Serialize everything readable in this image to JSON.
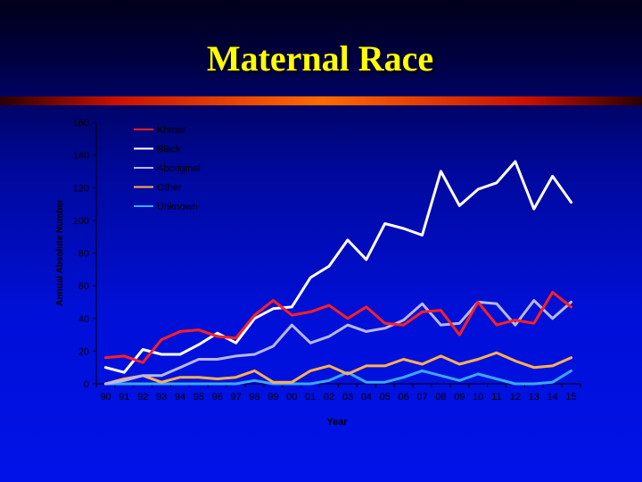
{
  "slide": {
    "title": "Maternal Race"
  },
  "chart_data": {
    "type": "line",
    "title": "",
    "xlabel": "Year",
    "ylabel": "Annual Absolute Number",
    "ylim": [
      0,
      160
    ],
    "yticks": [
      0,
      20,
      40,
      60,
      80,
      100,
      120,
      140,
      160
    ],
    "grid": false,
    "legend_position": "top-left",
    "categories": [
      "90",
      "91",
      "92",
      "93",
      "94",
      "95",
      "96",
      "97",
      "98",
      "99",
      "00",
      "01",
      "02",
      "03",
      "04",
      "05",
      "06",
      "07",
      "08",
      "09",
      "10",
      "11",
      "12",
      "13",
      "14",
      "15"
    ],
    "series": [
      {
        "name": "Khmer",
        "color": "#ff2020",
        "values": [
          16,
          17,
          13,
          27,
          32,
          33,
          29,
          28,
          42,
          51,
          42,
          44,
          48,
          40,
          47,
          37,
          36,
          44,
          45,
          30,
          50,
          36,
          39,
          37,
          56,
          47
        ]
      },
      {
        "name": "Black",
        "color": "#ffffff",
        "values": [
          10,
          7,
          21,
          18,
          18,
          24,
          31,
          25,
          40,
          46,
          47,
          65,
          72,
          88,
          76,
          98,
          95,
          91,
          130,
          109,
          119,
          123,
          136,
          107,
          127,
          111
        ]
      },
      {
        "name": "Aboriginal",
        "color": "#b8b8e8",
        "values": [
          0,
          2,
          5,
          5,
          10,
          15,
          15,
          17,
          18,
          23,
          36,
          25,
          29,
          36,
          32,
          34,
          39,
          49,
          36,
          37,
          50,
          49,
          36,
          51,
          40,
          50
        ]
      },
      {
        "name": "Other",
        "color": "#ffb050",
        "values": [
          0,
          3,
          5,
          1,
          4,
          4,
          3,
          4,
          8,
          1,
          1,
          8,
          11,
          6,
          11,
          11,
          15,
          12,
          17,
          12,
          15,
          19,
          14,
          10,
          11,
          16
        ]
      },
      {
        "name": "Unknown",
        "color": "#3aa8ff",
        "values": [
          0,
          0,
          0,
          0,
          0,
          0,
          0,
          0,
          2,
          0,
          0,
          0,
          2,
          7,
          1,
          1,
          4,
          8,
          5,
          2,
          6,
          3,
          0,
          0,
          1,
          8
        ]
      }
    ]
  }
}
